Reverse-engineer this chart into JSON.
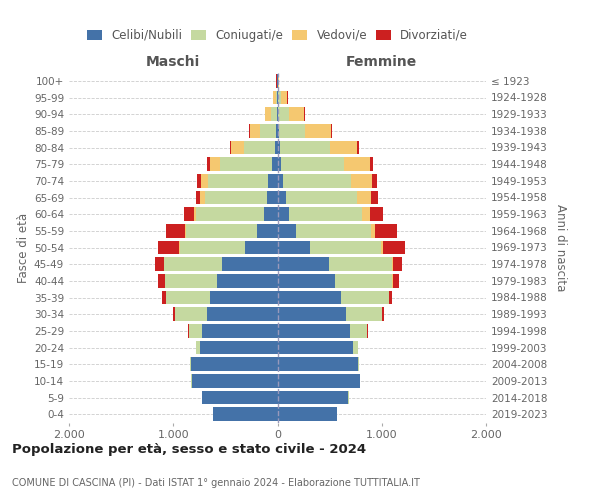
{
  "age_groups": [
    "0-4",
    "5-9",
    "10-14",
    "15-19",
    "20-24",
    "25-29",
    "30-34",
    "35-39",
    "40-44",
    "45-49",
    "50-54",
    "55-59",
    "60-64",
    "65-69",
    "70-74",
    "75-79",
    "80-84",
    "85-89",
    "90-94",
    "95-99",
    "100+"
  ],
  "birth_years": [
    "2019-2023",
    "2014-2018",
    "2009-2013",
    "2004-2008",
    "1999-2003",
    "1994-1998",
    "1989-1993",
    "1984-1988",
    "1979-1983",
    "1974-1978",
    "1969-1973",
    "1964-1968",
    "1959-1963",
    "1954-1958",
    "1949-1953",
    "1944-1948",
    "1939-1943",
    "1934-1938",
    "1929-1933",
    "1924-1928",
    "≤ 1923"
  ],
  "colors": {
    "celibe": "#4472a8",
    "coniugato": "#c5d9a0",
    "vedovo": "#f5c870",
    "divorziato": "#cc2020"
  },
  "males": {
    "celibe": [
      620,
      720,
      820,
      830,
      740,
      720,
      680,
      650,
      580,
      530,
      310,
      200,
      130,
      100,
      90,
      55,
      25,
      15,
      8,
      4,
      2
    ],
    "coniugato": [
      2,
      3,
      5,
      10,
      40,
      130,
      300,
      420,
      500,
      560,
      630,
      680,
      650,
      600,
      580,
      500,
      300,
      150,
      50,
      15,
      3
    ],
    "vedovo": [
      0,
      0,
      0,
      0,
      1,
      1,
      1,
      2,
      2,
      3,
      5,
      10,
      20,
      40,
      60,
      90,
      120,
      100,
      60,
      20,
      4
    ],
    "divorziato": [
      0,
      0,
      0,
      2,
      5,
      10,
      20,
      40,
      60,
      80,
      200,
      180,
      100,
      45,
      40,
      30,
      15,
      10,
      5,
      3,
      1
    ]
  },
  "females": {
    "nubile": [
      570,
      680,
      790,
      770,
      720,
      700,
      660,
      610,
      550,
      490,
      310,
      180,
      110,
      80,
      55,
      35,
      20,
      15,
      8,
      4,
      2
    ],
    "coniugata": [
      2,
      3,
      5,
      12,
      50,
      160,
      340,
      460,
      550,
      610,
      680,
      720,
      700,
      680,
      650,
      600,
      480,
      250,
      100,
      30,
      5
    ],
    "vedova": [
      0,
      0,
      0,
      0,
      1,
      2,
      2,
      3,
      5,
      8,
      20,
      40,
      80,
      140,
      200,
      250,
      260,
      250,
      150,
      60,
      6
    ],
    "divorziata": [
      0,
      0,
      0,
      1,
      3,
      8,
      15,
      30,
      60,
      90,
      210,
      210,
      120,
      60,
      50,
      30,
      18,
      10,
      8,
      4,
      1
    ]
  },
  "title": "Popolazione per età, sesso e stato civile - 2024",
  "subtitle": "COMUNE DI CASCINA (PI) - Dati ISTAT 1° gennaio 2024 - Elaborazione TUTTITALIA.IT",
  "ylabel_left": "Fasce di età",
  "ylabel_right": "Anni di nascita",
  "xlabel_left": "Maschi",
  "xlabel_right": "Femmine",
  "xlim": 2000,
  "background_color": "#ffffff",
  "grid_color": "#cccccc"
}
